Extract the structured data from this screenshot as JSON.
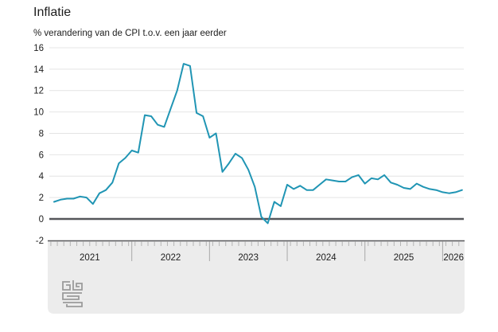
{
  "title": "Inflatie",
  "subtitle": "% verandering van de CPI t.o.v. een jaar eerder",
  "branding": {
    "logo_name": "cbs-logo"
  },
  "colors": {
    "line": "#2095b4",
    "grid": "#e4e4e4",
    "zero_line": "#55565a",
    "axis_band_bg": "#ececec",
    "axis_band_border": "#58585a",
    "minor_tick": "#b5b5b5",
    "year_separator": "#a8a8a8",
    "text": "#1d1d1d",
    "logo": "#9b9b9b",
    "background": "#ffffff"
  },
  "chart_data": {
    "type": "line",
    "title": "Inflatie",
    "subtitle": "% verandering van de CPI t.o.v. een jaar eerder",
    "ylabel": "% verandering van de CPI t.o.v. een jaar eerder",
    "ylim": [
      -2,
      16
    ],
    "yticks": [
      16,
      14,
      12,
      10,
      8,
      6,
      4,
      2,
      0,
      -2
    ],
    "grid": true,
    "legend_position": "none",
    "x_axis_style": "ruler-band-monthly",
    "x_year_labels": [
      "2021",
      "2022",
      "2023",
      "2024",
      "2025",
      "2026"
    ],
    "x_start": "2021-01",
    "frequency": "monthly",
    "series": [
      {
        "name": "Inflatie",
        "values": [
          1.6,
          1.8,
          1.9,
          1.9,
          2.1,
          2.0,
          1.4,
          2.4,
          2.7,
          3.4,
          5.2,
          5.7,
          6.4,
          6.2,
          9.7,
          9.6,
          8.8,
          8.6,
          10.3,
          12.0,
          14.5,
          14.3,
          9.9,
          9.6,
          7.6,
          8.0,
          4.4,
          5.2,
          6.1,
          5.7,
          4.6,
          3.0,
          0.2,
          -0.4,
          1.6,
          1.2,
          3.2,
          2.8,
          3.1,
          2.7,
          2.7,
          3.2,
          3.7,
          3.6,
          3.5,
          3.5,
          3.9,
          4.1,
          3.3,
          3.8,
          3.7,
          4.1,
          3.4,
          3.2,
          2.9,
          2.8,
          3.3,
          3.0,
          2.8,
          2.7,
          2.5,
          2.4,
          2.5,
          2.7
        ]
      }
    ]
  }
}
